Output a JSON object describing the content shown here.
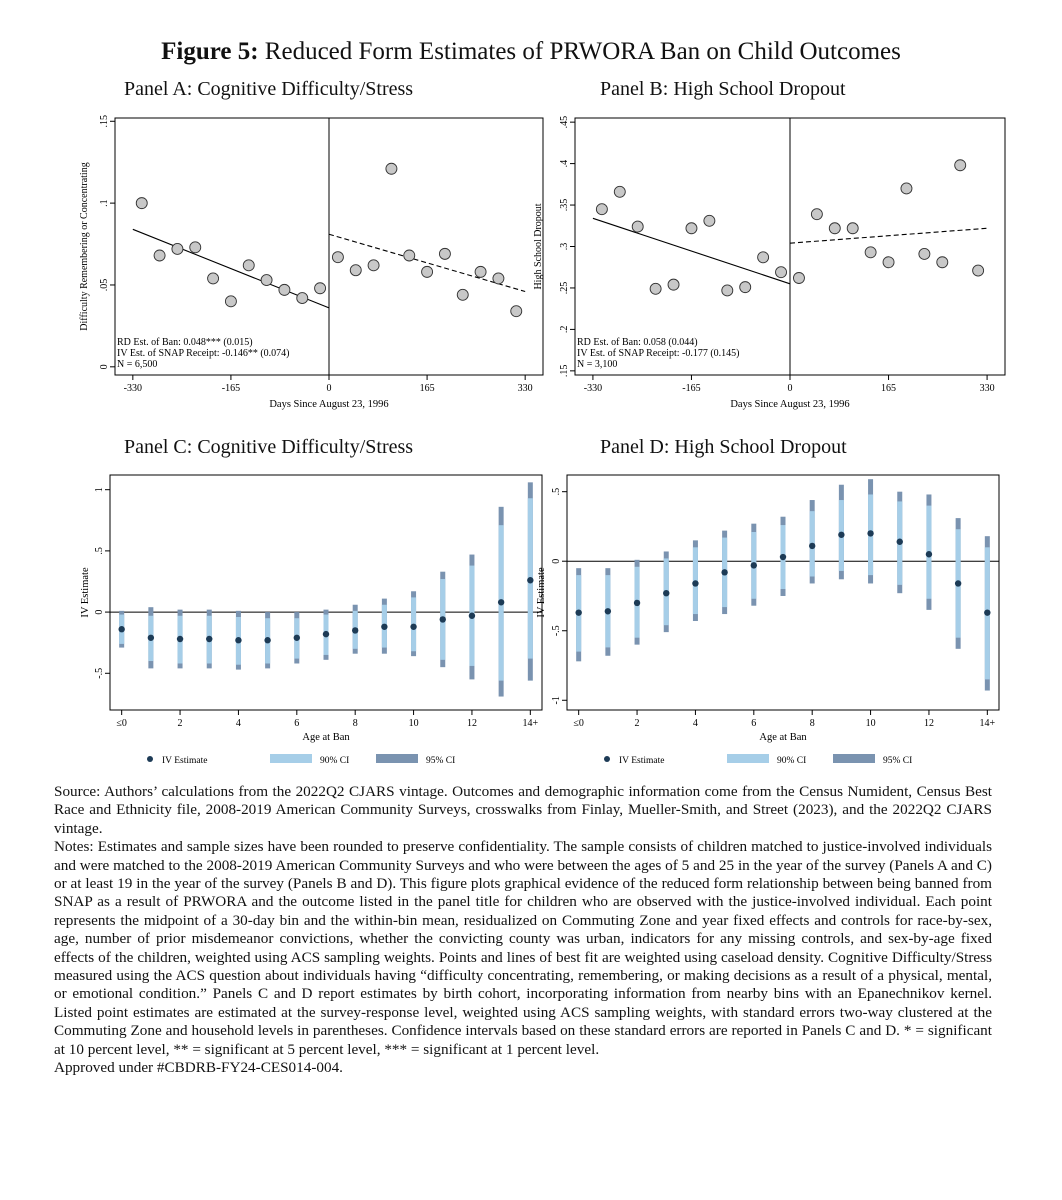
{
  "figure": {
    "label": "Figure 5:",
    "title": "Reduced Form Estimates of PRWORA Ban on Child Outcomes"
  },
  "panels": {
    "a_title": "Panel A: Cognitive Difficulty/Stress",
    "b_title": "Panel B: High School Dropout",
    "c_title": "Panel C: Cognitive Difficulty/Stress",
    "d_title": "Panel D: High School Dropout"
  },
  "chart_data": [
    {
      "id": "A",
      "type": "scatter",
      "title": "Panel A: Cognitive Difficulty/Stress",
      "xlabel": "Days Since August 23, 1996",
      "ylabel": "Difficulty Remembering or Concentrating",
      "xlim": [
        -360,
        360
      ],
      "ylim": [
        -0.005,
        0.152
      ],
      "xticks": [
        -330,
        -165,
        0,
        165,
        330
      ],
      "xtick_labels": [
        "-330",
        "-165",
        "0",
        "165",
        "330"
      ],
      "yticks": [
        0,
        0.05,
        0.1,
        0.15
      ],
      "ytick_labels": [
        "0",
        ".05",
        ".1",
        ".15"
      ],
      "cutoff": 0,
      "points": [
        {
          "x": -315,
          "y": 0.1
        },
        {
          "x": -285,
          "y": 0.068
        },
        {
          "x": -255,
          "y": 0.072
        },
        {
          "x": -225,
          "y": 0.073
        },
        {
          "x": -195,
          "y": 0.054
        },
        {
          "x": -165,
          "y": 0.04
        },
        {
          "x": -135,
          "y": 0.062
        },
        {
          "x": -105,
          "y": 0.053
        },
        {
          "x": -75,
          "y": 0.047
        },
        {
          "x": -45,
          "y": 0.042
        },
        {
          "x": -15,
          "y": 0.048
        },
        {
          "x": 15,
          "y": 0.067
        },
        {
          "x": 45,
          "y": 0.059
        },
        {
          "x": 75,
          "y": 0.062
        },
        {
          "x": 105,
          "y": 0.121
        },
        {
          "x": 135,
          "y": 0.068
        },
        {
          "x": 165,
          "y": 0.058
        },
        {
          "x": 195,
          "y": 0.069
        },
        {
          "x": 225,
          "y": 0.044
        },
        {
          "x": 255,
          "y": 0.058
        },
        {
          "x": 285,
          "y": 0.054
        },
        {
          "x": 315,
          "y": 0.034
        }
      ],
      "fit_left": {
        "x": [
          -330,
          0
        ],
        "y": [
          0.084,
          0.036
        ]
      },
      "fit_right": {
        "x": [
          0,
          330
        ],
        "y": [
          0.081,
          0.046
        ]
      },
      "annotations": [
        "RD Est. of Ban: 0.048*** (0.015)",
        "IV Est. of SNAP Receipt: -0.146** (0.074)",
        "N = 6,500"
      ]
    },
    {
      "id": "B",
      "type": "scatter",
      "title": "Panel B: High School Dropout",
      "xlabel": "Days Since August 23, 1996",
      "ylabel": "High School Dropout",
      "xlim": [
        -360,
        360
      ],
      "ylim": [
        0.145,
        0.455
      ],
      "xticks": [
        -330,
        -165,
        0,
        165,
        330
      ],
      "xtick_labels": [
        "-330",
        "-165",
        "0",
        "165",
        "330"
      ],
      "yticks": [
        0.15,
        0.2,
        0.25,
        0.3,
        0.35,
        0.4,
        0.45
      ],
      "ytick_labels": [
        ".15",
        ".2",
        ".25",
        ".3",
        ".35",
        ".4",
        ".45"
      ],
      "cutoff": 0,
      "points": [
        {
          "x": -315,
          "y": 0.345
        },
        {
          "x": -285,
          "y": 0.366
        },
        {
          "x": -255,
          "y": 0.324
        },
        {
          "x": -225,
          "y": 0.249
        },
        {
          "x": -195,
          "y": 0.254
        },
        {
          "x": -165,
          "y": 0.322
        },
        {
          "x": -135,
          "y": 0.331
        },
        {
          "x": -105,
          "y": 0.247
        },
        {
          "x": -75,
          "y": 0.251
        },
        {
          "x": -45,
          "y": 0.287
        },
        {
          "x": -15,
          "y": 0.269
        },
        {
          "x": 15,
          "y": 0.262
        },
        {
          "x": 45,
          "y": 0.339
        },
        {
          "x": 75,
          "y": 0.322
        },
        {
          "x": 105,
          "y": 0.322
        },
        {
          "x": 135,
          "y": 0.293
        },
        {
          "x": 165,
          "y": 0.281
        },
        {
          "x": 195,
          "y": 0.37
        },
        {
          "x": 225,
          "y": 0.291
        },
        {
          "x": 255,
          "y": 0.281
        },
        {
          "x": 285,
          "y": 0.398
        },
        {
          "x": 315,
          "y": 0.271
        }
      ],
      "fit_left": {
        "x": [
          -330,
          0
        ],
        "y": [
          0.334,
          0.255
        ]
      },
      "fit_right": {
        "x": [
          0,
          330
        ],
        "y": [
          0.304,
          0.322
        ]
      },
      "annotations": [
        "RD Est. of Ban: 0.058 (0.044)",
        "IV Est. of SNAP Receipt: -0.177 (0.145)",
        "N = 3,100"
      ]
    },
    {
      "id": "C",
      "type": "errorbar",
      "title": "Panel C: Cognitive Difficulty/Stress",
      "xlabel": "Age at Ban",
      "ylabel": "IV Estimate",
      "xlim": [
        -0.4,
        14.4
      ],
      "ylim": [
        -0.8,
        1.12
      ],
      "xticks": [
        0,
        2,
        4,
        6,
        8,
        10,
        12,
        14
      ],
      "xtick_labels": [
        "≤0",
        "2",
        "4",
        "6",
        "8",
        "10",
        "12",
        "14+"
      ],
      "yticks": [
        -0.5,
        0,
        0.5,
        1
      ],
      "ytick_labels": [
        "-.5",
        "0",
        ".5",
        "1"
      ],
      "ages": [
        0,
        1,
        2,
        3,
        4,
        5,
        6,
        7,
        8,
        9,
        10,
        11,
        12,
        13,
        14
      ],
      "estimates": [
        -0.14,
        -0.21,
        -0.22,
        -0.22,
        -0.23,
        -0.23,
        -0.21,
        -0.18,
        -0.15,
        -0.12,
        -0.12,
        -0.06,
        -0.03,
        0.08,
        0.26
      ],
      "ci90": [
        [
          -0.26,
          -0.02
        ],
        [
          -0.4,
          -0.03
        ],
        [
          -0.42,
          -0.03
        ],
        [
          -0.42,
          -0.03
        ],
        [
          -0.43,
          -0.04
        ],
        [
          -0.42,
          -0.05
        ],
        [
          -0.38,
          -0.05
        ],
        [
          -0.35,
          -0.02
        ],
        [
          -0.3,
          0.01
        ],
        [
          -0.29,
          0.06
        ],
        [
          -0.32,
          0.12
        ],
        [
          -0.39,
          0.27
        ],
        [
          -0.44,
          0.38
        ],
        [
          -0.56,
          0.71
        ],
        [
          -0.38,
          0.93
        ]
      ],
      "ci95": [
        [
          -0.29,
          0.01
        ],
        [
          -0.46,
          0.04
        ],
        [
          -0.46,
          0.02
        ],
        [
          -0.46,
          0.02
        ],
        [
          -0.47,
          0.01
        ],
        [
          -0.46,
          0.0
        ],
        [
          -0.42,
          0.0
        ],
        [
          -0.39,
          0.02
        ],
        [
          -0.34,
          0.06
        ],
        [
          -0.34,
          0.11
        ],
        [
          -0.36,
          0.17
        ],
        [
          -0.45,
          0.33
        ],
        [
          -0.55,
          0.47
        ],
        [
          -0.69,
          0.86
        ],
        [
          -0.56,
          1.06
        ]
      ],
      "legend": [
        "IV Estimate",
        "90% CI",
        "95% CI"
      ]
    },
    {
      "id": "D",
      "type": "errorbar",
      "title": "Panel D: High School Dropout",
      "xlabel": "Age at Ban",
      "ylabel": "IV Estimate",
      "xlim": [
        -0.4,
        14.4
      ],
      "ylim": [
        -1.07,
        0.62
      ],
      "xticks": [
        0,
        2,
        4,
        6,
        8,
        10,
        12,
        14
      ],
      "xtick_labels": [
        "≤0",
        "2",
        "4",
        "6",
        "8",
        "10",
        "12",
        "14+"
      ],
      "yticks": [
        -1,
        -0.5,
        0,
        0.5
      ],
      "ytick_labels": [
        "-1",
        "-.5",
        "0",
        ".5"
      ],
      "ages": [
        0,
        1,
        2,
        3,
        4,
        5,
        6,
        7,
        8,
        9,
        10,
        11,
        12,
        13,
        14
      ],
      "estimates": [
        -0.37,
        -0.36,
        -0.3,
        -0.23,
        -0.16,
        -0.08,
        -0.03,
        0.03,
        0.11,
        0.19,
        0.2,
        0.14,
        0.05,
        -0.16,
        -0.37
      ],
      "ci90": [
        [
          -0.65,
          -0.1
        ],
        [
          -0.62,
          -0.1
        ],
        [
          -0.55,
          -0.04
        ],
        [
          -0.46,
          0.02
        ],
        [
          -0.38,
          0.1
        ],
        [
          -0.33,
          0.17
        ],
        [
          -0.27,
          0.21
        ],
        [
          -0.2,
          0.26
        ],
        [
          -0.11,
          0.36
        ],
        [
          -0.07,
          0.44
        ],
        [
          -0.1,
          0.48
        ],
        [
          -0.17,
          0.43
        ],
        [
          -0.27,
          0.4
        ],
        [
          -0.55,
          0.23
        ],
        [
          -0.85,
          0.1
        ]
      ],
      "ci95": [
        [
          -0.72,
          -0.05
        ],
        [
          -0.68,
          -0.05
        ],
        [
          -0.6,
          0.01
        ],
        [
          -0.51,
          0.07
        ],
        [
          -0.43,
          0.15
        ],
        [
          -0.38,
          0.22
        ],
        [
          -0.32,
          0.27
        ],
        [
          -0.25,
          0.32
        ],
        [
          -0.16,
          0.44
        ],
        [
          -0.13,
          0.55
        ],
        [
          -0.16,
          0.59
        ],
        [
          -0.23,
          0.5
        ],
        [
          -0.35,
          0.48
        ],
        [
          -0.63,
          0.31
        ],
        [
          -0.93,
          0.18
        ]
      ],
      "legend": [
        "IV Estimate",
        "90% CI",
        "95% CI"
      ]
    }
  ],
  "colors": {
    "marker_fill": "#c8c8c8",
    "ci90": "#a6cee8",
    "ci95": "#7a93b0",
    "estimate_dot": "#1d3b56"
  },
  "notes": {
    "source": "Source: Authors’ calculations from the 2022Q2 CJARS vintage. Outcomes and demographic information come from the Census Numident, Census Best Race and Ethnicity file, 2008-2019 American Community Surveys, crosswalks from Finlay, Mueller-Smith, and Street (2023), and the 2022Q2 CJARS vintage.",
    "notes": "Notes: Estimates and sample sizes have been rounded to preserve confidentiality. The sample consists of children matched to justice-involved individuals and were matched to the 2008-2019 American Community Surveys and who were between the ages of 5 and 25 in the year of the survey (Panels A and C) or at least 19 in the year of the survey (Panels B and D). This figure plots graphical evidence of the reduced form relationship between being banned from SNAP as a result of PRWORA and the outcome listed in the panel title for children who are observed with the justice-involved individual. Each point represents the midpoint of a 30-day bin and the within-bin mean, residualized on Commuting Zone and year fixed effects and controls for race-by-sex, age, number of prior misdemeanor convictions, whether the convicting county was urban, indicators for any missing controls, and sex-by-age fixed effects of the children, weighted using ACS sampling weights. Points and lines of best fit are weighted using caseload density. Cognitive Difficulty/Stress measured using the ACS question about individuals having “difficulty concentrating, remembering, or making decisions as a result of a physical, mental, or emotional condition.” Panels C and D report estimates by birth cohort, incorporating information from nearby bins with an Epanechnikov kernel. Listed point estimates are estimated at the survey-response level, weighted using ACS sampling weights, with standard errors two-way clustered at the Commuting Zone and household levels in parentheses. Confidence intervals based on these standard errors are reported in Panels C and D. * = significant at 10 percent level, ** = significant at 5 percent level, *** = significant at 1 percent level.",
    "approved": "Approved under #CBDRB-FY24-CES014-004."
  }
}
